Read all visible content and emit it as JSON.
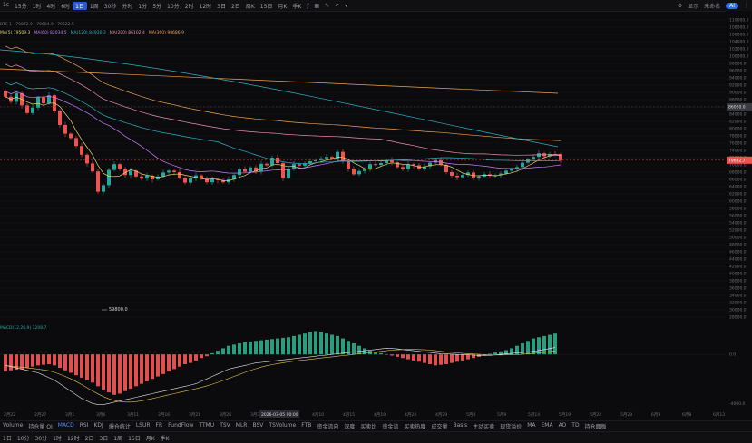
{
  "toolbar": {
    "timeframes": [
      {
        "label": "1s",
        "active": false
      },
      {
        "label": "15分",
        "active": false
      },
      {
        "label": "1时",
        "active": false
      },
      {
        "label": "4时",
        "active": false
      },
      {
        "label": "6时",
        "active": false
      },
      {
        "label": "1日",
        "active": true
      },
      {
        "label": "1周",
        "active": false
      },
      {
        "label": "30秒",
        "active": false
      },
      {
        "label": "分时",
        "active": false
      },
      {
        "label": "1分",
        "active": false
      },
      {
        "label": "5分",
        "active": false
      },
      {
        "label": "10分",
        "active": false
      },
      {
        "label": "2时",
        "active": false
      },
      {
        "label": "12时",
        "active": false
      },
      {
        "label": "3日",
        "active": false
      },
      {
        "label": "2日",
        "active": false
      },
      {
        "label": "周K",
        "active": false
      },
      {
        "label": "15日",
        "active": false
      },
      {
        "label": "月K",
        "active": false
      },
      {
        "label": "季K",
        "active": false
      }
    ],
    "right_items": [
      "显示",
      "未命名",
      "AI"
    ]
  },
  "legend_main": "BTC 1 · 79872.9 · 79604.9 · 79622.5",
  "legend_ma": [
    {
      "text": "MA(5) 79509.3",
      "color": "#e7d46b"
    },
    {
      "text": "MA(60) 82034.5",
      "color": "#c77dff"
    },
    {
      "text": "MA(120) 84930.3",
      "color": "#2bb4c6"
    },
    {
      "text": "MA(200) 86102.4",
      "color": "#f08fb3"
    },
    {
      "text": "MA(360) 98686.9",
      "color": "#f0a350"
    }
  ],
  "price_axis": {
    "min": 28000,
    "max": 110000,
    "step": 2000,
    "current_price_label": "79682.7",
    "crosshair_price_label": "86020.0"
  },
  "chart_data": {
    "type": "candlestick",
    "date_labels": [
      "2月22",
      "2月27",
      "3月1",
      "3月6",
      "3月11",
      "3月16",
      "3月21",
      "3月26",
      "3月31",
      "4月5",
      "4月10",
      "4月15",
      "4月19",
      "4月24",
      "4月29",
      "5月4",
      "5月9",
      "5月14",
      "5月19",
      "5月24",
      "5月29",
      "6月3",
      "6月8",
      "6月13"
    ],
    "crosshair_date": "2026-03-05 00:00",
    "low_marker": "59800.0",
    "candles": [
      {
        "o": 90500,
        "c": 88800
      },
      {
        "o": 88800,
        "c": 87400
      },
      {
        "o": 87400,
        "c": 89800
      },
      {
        "o": 89800,
        "c": 86400
      },
      {
        "o": 86400,
        "c": 84300
      },
      {
        "o": 84300,
        "c": 85800
      },
      {
        "o": 85800,
        "c": 88600
      },
      {
        "o": 88600,
        "c": 87000
      },
      {
        "o": 87000,
        "c": 89200
      },
      {
        "o": 89200,
        "c": 84800
      },
      {
        "o": 84800,
        "c": 81000
      },
      {
        "o": 81000,
        "c": 78600
      },
      {
        "o": 78600,
        "c": 77400
      },
      {
        "o": 77400,
        "c": 75200
      },
      {
        "o": 75200,
        "c": 72800
      },
      {
        "o": 72800,
        "c": 70400
      },
      {
        "o": 70400,
        "c": 68200
      },
      {
        "o": 68200,
        "c": 62600
      },
      {
        "o": 62600,
        "c": 64400
      },
      {
        "o": 64400,
        "c": 68600
      },
      {
        "o": 68600,
        "c": 70200
      },
      {
        "o": 70200,
        "c": 68900
      },
      {
        "o": 68900,
        "c": 67200
      },
      {
        "o": 67200,
        "c": 68400
      },
      {
        "o": 68400,
        "c": 66800
      },
      {
        "o": 66800,
        "c": 66200
      },
      {
        "o": 66200,
        "c": 67000
      },
      {
        "o": 67000,
        "c": 66000
      },
      {
        "o": 66000,
        "c": 66800
      },
      {
        "o": 66800,
        "c": 67900
      },
      {
        "o": 67900,
        "c": 68400
      },
      {
        "o": 68400,
        "c": 68000
      },
      {
        "o": 68000,
        "c": 66400
      },
      {
        "o": 66400,
        "c": 65100
      },
      {
        "o": 65100,
        "c": 66300
      },
      {
        "o": 66300,
        "c": 67100
      },
      {
        "o": 67100,
        "c": 66200
      },
      {
        "o": 66200,
        "c": 65200
      },
      {
        "o": 65200,
        "c": 66000
      },
      {
        "o": 66000,
        "c": 65800
      },
      {
        "o": 65800,
        "c": 65200
      },
      {
        "o": 65200,
        "c": 66000
      },
      {
        "o": 66000,
        "c": 67200
      },
      {
        "o": 67200,
        "c": 68800
      },
      {
        "o": 68800,
        "c": 68100
      },
      {
        "o": 68100,
        "c": 69300
      },
      {
        "o": 69300,
        "c": 68200
      },
      {
        "o": 68200,
        "c": 70300
      },
      {
        "o": 70300,
        "c": 69900
      },
      {
        "o": 69900,
        "c": 72000
      },
      {
        "o": 72000,
        "c": 70500
      },
      {
        "o": 70500,
        "c": 66400
      },
      {
        "o": 66400,
        "c": 68900
      },
      {
        "o": 68900,
        "c": 70200
      },
      {
        "o": 70200,
        "c": 69800
      },
      {
        "o": 69800,
        "c": 70400
      },
      {
        "o": 70400,
        "c": 71000
      },
      {
        "o": 71000,
        "c": 71300
      },
      {
        "o": 71300,
        "c": 71800
      },
      {
        "o": 71800,
        "c": 72200
      },
      {
        "o": 72200,
        "c": 71700
      },
      {
        "o": 71700,
        "c": 73600
      },
      {
        "o": 73600,
        "c": 71000
      },
      {
        "o": 71000,
        "c": 69000
      },
      {
        "o": 69000,
        "c": 67400
      },
      {
        "o": 67400,
        "c": 68300
      },
      {
        "o": 68300,
        "c": 69000
      },
      {
        "o": 69000,
        "c": 70200
      },
      {
        "o": 70200,
        "c": 70000
      },
      {
        "o": 70000,
        "c": 70500
      },
      {
        "o": 70500,
        "c": 71300
      },
      {
        "o": 71300,
        "c": 70700
      },
      {
        "o": 70700,
        "c": 69400
      },
      {
        "o": 69400,
        "c": 68800
      },
      {
        "o": 68800,
        "c": 70200
      },
      {
        "o": 70200,
        "c": 69900
      },
      {
        "o": 69900,
        "c": 68800
      },
      {
        "o": 68800,
        "c": 69600
      },
      {
        "o": 69600,
        "c": 70600
      },
      {
        "o": 70600,
        "c": 71300
      },
      {
        "o": 71300,
        "c": 70000
      },
      {
        "o": 70000,
        "c": 68000
      },
      {
        "o": 68000,
        "c": 67000
      },
      {
        "o": 67000,
        "c": 66600
      },
      {
        "o": 66600,
        "c": 67200
      },
      {
        "o": 67200,
        "c": 67900
      },
      {
        "o": 67900,
        "c": 66500
      },
      {
        "o": 66500,
        "c": 66800
      },
      {
        "o": 66800,
        "c": 67400
      },
      {
        "o": 67400,
        "c": 67000
      },
      {
        "o": 67000,
        "c": 67200
      },
      {
        "o": 67200,
        "c": 67600
      },
      {
        "o": 67600,
        "c": 68400
      },
      {
        "o": 68400,
        "c": 68800
      },
      {
        "o": 68800,
        "c": 69400
      },
      {
        "o": 69400,
        "c": 70600
      },
      {
        "o": 70600,
        "c": 71600
      },
      {
        "o": 71600,
        "c": 72200
      },
      {
        "o": 72200,
        "c": 73200
      },
      {
        "o": 73200,
        "c": 72400
      },
      {
        "o": 72400,
        "c": 73000
      },
      {
        "o": 73000,
        "c": 72900
      },
      {
        "o": 72900,
        "c": 71300
      }
    ]
  },
  "macd": {
    "label": "MACD(12,26,9) 1208.7",
    "zero_label": "0.0",
    "bottom_label": "-4000.0",
    "range": [
      -4200,
      2600
    ],
    "bars": [
      -1400,
      -1300,
      -1250,
      -1200,
      -1100,
      -1000,
      -900,
      -850,
      -800,
      -900,
      -1100,
      -1300,
      -1500,
      -1700,
      -1900,
      -2100,
      -2300,
      -2600,
      -2900,
      -3100,
      -3300,
      -3200,
      -3000,
      -2800,
      -2600,
      -2400,
      -2200,
      -2000,
      -1800,
      -1600,
      -1400,
      -1200,
      -1000,
      -800,
      -700,
      -500,
      -300,
      -150,
      100,
      300,
      500,
      700,
      800,
      900,
      1000,
      1050,
      1100,
      1150,
      1200,
      1250,
      1300,
      1350,
      1400,
      1500,
      1600,
      1700,
      1800,
      1900,
      1800,
      1700,
      1600,
      1500,
      1300,
      1100,
      900,
      700,
      500,
      300,
      200,
      100,
      0,
      -100,
      -200,
      -300,
      -400,
      -500,
      -600,
      -700,
      -800,
      -900,
      -850,
      -800,
      -700,
      -600,
      -500,
      -400,
      -300,
      -200,
      -100,
      50,
      150,
      250,
      350,
      500,
      700,
      900,
      1100,
      1300,
      1400,
      1500,
      1600,
      1700
    ],
    "dif": [
      -900,
      -1000,
      -1100,
      -1200,
      -1300,
      -1400,
      -1500,
      -1700,
      -1900,
      -2100,
      -2400,
      -2700,
      -3000,
      -3300,
      -3600,
      -3800,
      -4000,
      -4100,
      -4100,
      -4000,
      -3900,
      -3800,
      -3700,
      -3600,
      -3500,
      -3400,
      -3300,
      -3200,
      -3100,
      -3000,
      -2900,
      -2800,
      -2700,
      -2600,
      -2500,
      -2400,
      -2200,
      -2000,
      -1800,
      -1600,
      -1400,
      -1200,
      -1100,
      -1000,
      -900,
      -800,
      -700,
      -650,
      -600,
      -550,
      -500,
      -450,
      -400,
      -350,
      -300,
      -250,
      -200,
      -150,
      -100,
      -50,
      0,
      50,
      100,
      150,
      200,
      250,
      300,
      350,
      400,
      450,
      500,
      480,
      450,
      400,
      350,
      300,
      250,
      200,
      150,
      100,
      60,
      40,
      20,
      0,
      -20,
      -40,
      -60,
      -80,
      -100,
      -80,
      -40,
      0,
      40,
      80,
      120,
      160,
      200,
      260,
      320,
      400,
      480,
      560
    ]
  },
  "indicators": [
    "Volume",
    "持仓量 OI",
    "MACD",
    "RSI",
    "KDJ",
    "爆仓统计",
    "LSUR",
    "FR",
    "FundFlow",
    "TTMU",
    "TSV",
    "MLR",
    "BSV",
    "TSVolume",
    "FTB",
    "资金流向",
    "深度",
    "买卖比",
    "资金流",
    "买卖热度",
    "成交量",
    "Basis",
    "主动买卖",
    "现货溢价",
    "MA",
    "EMA",
    "AO",
    "TD",
    "持仓面板"
  ],
  "bottom_timeframes": [
    "1日",
    "10分",
    "30分",
    "1时",
    "12时",
    "2日",
    "3日",
    "1周",
    "15日",
    "月K",
    "季K"
  ]
}
